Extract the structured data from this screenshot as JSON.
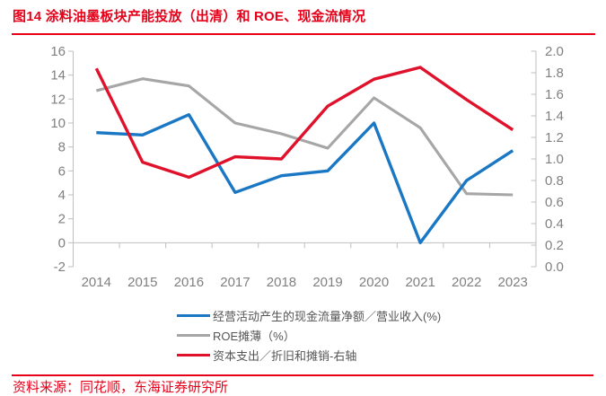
{
  "header": {
    "title": "图14  涂料油墨板块产能投放（出清）和 ROE、现金流情况"
  },
  "footer": {
    "source": "资料来源：同花顺，东海证券研究所"
  },
  "colors": {
    "accent_red": "#E60019",
    "series_blue": "#1A77C4",
    "series_gray": "#A6A6A6",
    "series_red": "#E0112B",
    "axis_text": "#808080",
    "axis_line": "#BFBFBF",
    "legend_text": "#555555"
  },
  "chart_data": {
    "type": "line",
    "categories": [
      "2014",
      "2015",
      "2016",
      "2017",
      "2018",
      "2019",
      "2020",
      "2021",
      "2022",
      "2023"
    ],
    "series": [
      {
        "name": "经营活动产生的现金流量净额／营业收入(%)",
        "axis": "left",
        "color": "#1A77C4",
        "values": [
          9.2,
          9.0,
          10.7,
          4.2,
          5.6,
          6.0,
          10.0,
          0.0,
          5.2,
          7.7
        ]
      },
      {
        "name": "ROE摊薄（%）",
        "axis": "left",
        "color": "#A6A6A6",
        "values": [
          12.7,
          13.7,
          13.1,
          10.0,
          9.1,
          7.9,
          12.1,
          9.6,
          4.1,
          4.0
        ]
      },
      {
        "name": "资本支出／折旧和摊销-右轴",
        "axis": "right",
        "color": "#E0112B",
        "values": [
          1.84,
          0.97,
          0.83,
          1.02,
          1.0,
          1.49,
          1.74,
          1.85,
          1.55,
          1.27
        ]
      }
    ],
    "left_axis": {
      "min": -2,
      "max": 16,
      "ticks": [
        "16",
        "14",
        "12",
        "10",
        "8",
        "6",
        "4",
        "2",
        "0",
        "-2"
      ]
    },
    "right_axis": {
      "min": 0.0,
      "max": 2.0,
      "ticks": [
        "2.0",
        "1.8",
        "1.6",
        "1.4",
        "1.2",
        "1.0",
        "0.8",
        "0.6",
        "0.4",
        "0.2",
        "0.0"
      ]
    },
    "legend_position": "bottom",
    "grid": "none",
    "draw_order": [
      1,
      0,
      2
    ]
  }
}
